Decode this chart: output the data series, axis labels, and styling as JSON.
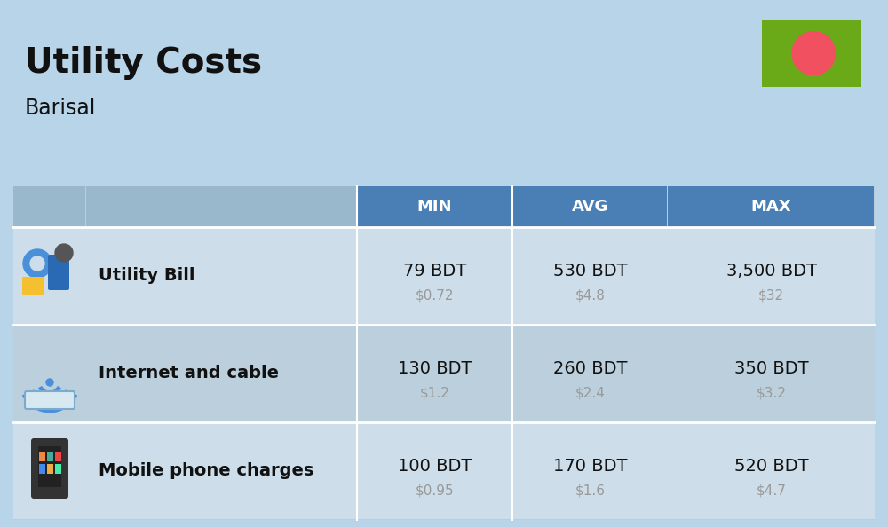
{
  "title": "Utility Costs",
  "subtitle": "Barisal",
  "background_color": "#b8d4e8",
  "header_bg_color": "#4a7fb5",
  "header_text_color": "#ffffff",
  "row_bg_colors": [
    "#ccdde8",
    "#bccfde"
  ],
  "columns": [
    "",
    "",
    "MIN",
    "AVG",
    "MAX"
  ],
  "rows": [
    {
      "label": "Utility Bill",
      "min_bdt": "79 BDT",
      "min_usd": "$0.72",
      "avg_bdt": "530 BDT",
      "avg_usd": "$4.8",
      "max_bdt": "3,500 BDT",
      "max_usd": "$32"
    },
    {
      "label": "Internet and cable",
      "min_bdt": "130 BDT",
      "min_usd": "$1.2",
      "avg_bdt": "260 BDT",
      "avg_usd": "$2.4",
      "max_bdt": "350 BDT",
      "max_usd": "$3.2"
    },
    {
      "label": "Mobile phone charges",
      "min_bdt": "100 BDT",
      "min_usd": "$0.95",
      "avg_bdt": "170 BDT",
      "avg_usd": "$1.6",
      "max_bdt": "520 BDT",
      "max_usd": "$4.7"
    }
  ],
  "flag_green": "#6aaa18",
  "flag_red": "#f05060",
  "bdt_fontsize": 14,
  "usd_fontsize": 11,
  "usd_color": "#999999",
  "label_fontsize": 14,
  "header_fontsize": 13,
  "title_fontsize": 28,
  "subtitle_fontsize": 17
}
